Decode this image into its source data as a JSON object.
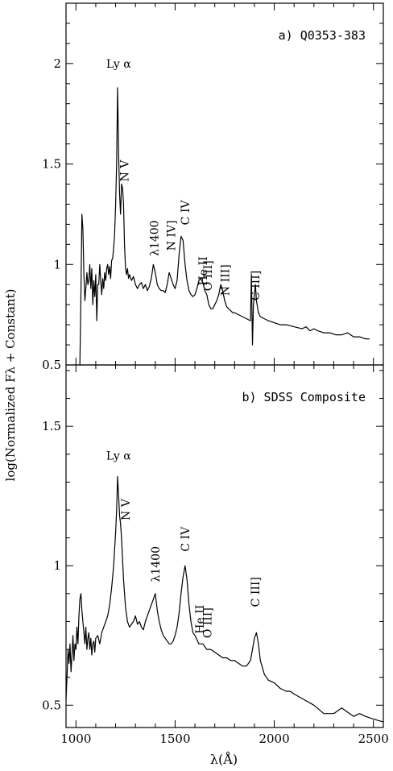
{
  "chart_data": {
    "type": "line",
    "shared_x": {
      "xlabel": "λ(Å)",
      "xlim": [
        950,
        2550
      ],
      "ticks": [
        1000,
        1500,
        2000,
        2500
      ],
      "tick_labels": [
        "1000",
        "1500",
        "2000",
        "2500"
      ]
    },
    "ylabel": "log(Normalized Fλ + Constant)",
    "panels": [
      {
        "title": "a) Q0353-383",
        "ylim": [
          0.5,
          2.3
        ],
        "yticks": [
          0.5,
          1,
          1.5,
          2
        ],
        "ytick_labels": [
          "0.5",
          "1",
          "1.5",
          "2"
        ],
        "annotations": [
          {
            "text": "Ly α",
            "x": 1215,
            "y": 1.98,
            "rotate": false
          },
          {
            "text": "N V",
            "x": 1245,
            "y": 1.52,
            "rotate": true
          },
          {
            "text": "λ1400",
            "x": 1395,
            "y": 1.22,
            "rotate": true
          },
          {
            "text": "N IV]",
            "x": 1480,
            "y": 1.22,
            "rotate": true
          },
          {
            "text": "C IV",
            "x": 1550,
            "y": 1.32,
            "rotate": true
          },
          {
            "text": "He II",
            "x": 1640,
            "y": 1.04,
            "rotate": true
          },
          {
            "text": "O III]",
            "x": 1665,
            "y": 1.02,
            "rotate": true
          },
          {
            "text": "N III]",
            "x": 1752,
            "y": 1.0,
            "rotate": true
          },
          {
            "text": "C III]",
            "x": 1905,
            "y": 0.97,
            "rotate": true
          }
        ],
        "x": [
          1020,
          1025,
          1030,
          1035,
          1040,
          1045,
          1050,
          1055,
          1060,
          1065,
          1070,
          1075,
          1080,
          1085,
          1090,
          1095,
          1100,
          1105,
          1110,
          1115,
          1120,
          1125,
          1130,
          1135,
          1140,
          1145,
          1150,
          1155,
          1160,
          1165,
          1170,
          1175,
          1180,
          1185,
          1190,
          1195,
          1200,
          1205,
          1210,
          1215,
          1220,
          1225,
          1230,
          1235,
          1240,
          1245,
          1250,
          1255,
          1260,
          1265,
          1270,
          1280,
          1290,
          1300,
          1310,
          1320,
          1330,
          1340,
          1350,
          1360,
          1370,
          1380,
          1390,
          1400,
          1410,
          1420,
          1430,
          1440,
          1450,
          1460,
          1470,
          1480,
          1490,
          1500,
          1510,
          1520,
          1530,
          1540,
          1550,
          1560,
          1570,
          1580,
          1590,
          1600,
          1610,
          1620,
          1630,
          1640,
          1650,
          1660,
          1670,
          1680,
          1690,
          1700,
          1710,
          1720,
          1730,
          1740,
          1750,
          1760,
          1770,
          1780,
          1790,
          1800,
          1820,
          1840,
          1860,
          1880,
          1885,
          1890,
          1895,
          1900,
          1905,
          1910,
          1920,
          1930,
          1950,
          1970,
          2000,
          2030,
          2060,
          2100,
          2140,
          2160,
          2180,
          2200,
          2220,
          2250,
          2280,
          2310,
          2340,
          2370,
          2400,
          2430,
          2460,
          2480
        ],
        "y": [
          0.5,
          0.85,
          1.25,
          1.18,
          0.95,
          0.82,
          0.88,
          0.96,
          0.9,
          0.92,
          1.0,
          0.88,
          0.98,
          0.8,
          0.92,
          0.84,
          0.95,
          0.72,
          0.9,
          0.9,
          1.0,
          0.92,
          0.85,
          0.93,
          0.88,
          0.96,
          0.92,
          0.98,
          1.0,
          0.95,
          0.99,
          0.93,
          1.02,
          1.03,
          1.08,
          1.15,
          1.3,
          1.5,
          1.88,
          1.55,
          1.35,
          1.25,
          1.4,
          1.38,
          1.3,
          1.1,
          0.98,
          0.95,
          0.98,
          0.93,
          0.95,
          0.92,
          0.94,
          0.9,
          0.88,
          0.9,
          0.91,
          0.88,
          0.9,
          0.87,
          0.89,
          0.93,
          1.0,
          0.96,
          0.9,
          0.88,
          0.87,
          0.87,
          0.86,
          0.9,
          0.96,
          0.93,
          0.9,
          0.88,
          0.92,
          1.05,
          1.14,
          1.12,
          1.0,
          0.92,
          0.87,
          0.85,
          0.84,
          0.85,
          0.88,
          0.92,
          0.93,
          0.91,
          0.87,
          0.85,
          0.8,
          0.78,
          0.78,
          0.8,
          0.82,
          0.85,
          0.9,
          0.87,
          0.82,
          0.79,
          0.78,
          0.77,
          0.76,
          0.76,
          0.75,
          0.74,
          0.73,
          0.72,
          0.95,
          0.6,
          0.8,
          0.85,
          0.9,
          0.82,
          0.76,
          0.74,
          0.73,
          0.72,
          0.71,
          0.7,
          0.7,
          0.69,
          0.68,
          0.69,
          0.67,
          0.68,
          0.67,
          0.66,
          0.66,
          0.65,
          0.65,
          0.66,
          0.64,
          0.64,
          0.63,
          0.63
        ]
      },
      {
        "title": "b) SDSS Composite",
        "ylim": [
          0.42,
          1.72
        ],
        "yticks": [
          0.5,
          1,
          1.5
        ],
        "ytick_labels": [
          "0.5",
          "1",
          "1.5"
        ],
        "annotations": [
          {
            "text": "Ly α",
            "x": 1215,
            "y": 1.38,
            "rotate": false
          },
          {
            "text": "N V",
            "x": 1250,
            "y": 1.24,
            "rotate": true
          },
          {
            "text": "λ1400",
            "x": 1400,
            "y": 1.07,
            "rotate": true
          },
          {
            "text": "C IV",
            "x": 1550,
            "y": 1.14,
            "rotate": true
          },
          {
            "text": "He II",
            "x": 1625,
            "y": 0.86,
            "rotate": true
          },
          {
            "text": "O III]",
            "x": 1662,
            "y": 0.85,
            "rotate": true
          },
          {
            "text": "C III]",
            "x": 1905,
            "y": 0.96,
            "rotate": true
          }
        ],
        "x": [
          950,
          955,
          960,
          965,
          970,
          975,
          980,
          985,
          990,
          995,
          1000,
          1005,
          1010,
          1015,
          1020,
          1025,
          1030,
          1035,
          1040,
          1045,
          1050,
          1055,
          1060,
          1065,
          1070,
          1075,
          1080,
          1085,
          1090,
          1095,
          1100,
          1110,
          1120,
          1130,
          1140,
          1150,
          1160,
          1170,
          1180,
          1190,
          1200,
          1205,
          1210,
          1215,
          1220,
          1225,
          1230,
          1240,
          1250,
          1260,
          1270,
          1280,
          1290,
          1300,
          1310,
          1320,
          1330,
          1340,
          1350,
          1360,
          1370,
          1380,
          1390,
          1400,
          1410,
          1420,
          1430,
          1440,
          1450,
          1460,
          1470,
          1480,
          1490,
          1500,
          1510,
          1520,
          1530,
          1540,
          1550,
          1560,
          1570,
          1580,
          1590,
          1600,
          1620,
          1640,
          1660,
          1680,
          1700,
          1720,
          1740,
          1760,
          1780,
          1800,
          1820,
          1840,
          1860,
          1880,
          1890,
          1900,
          1910,
          1920,
          1930,
          1950,
          1970,
          2000,
          2030,
          2060,
          2080,
          2100,
          2150,
          2200,
          2250,
          2300,
          2320,
          2340,
          2380,
          2400,
          2430,
          2460,
          2500,
          2550
        ],
        "y": [
          0.52,
          0.6,
          0.7,
          0.65,
          0.72,
          0.62,
          0.68,
          0.75,
          0.66,
          0.72,
          0.7,
          0.78,
          0.72,
          0.82,
          0.88,
          0.9,
          0.84,
          0.8,
          0.76,
          0.72,
          0.78,
          0.7,
          0.74,
          0.76,
          0.7,
          0.74,
          0.68,
          0.72,
          0.73,
          0.69,
          0.74,
          0.75,
          0.72,
          0.76,
          0.78,
          0.8,
          0.82,
          0.86,
          0.92,
          1.0,
          1.12,
          1.2,
          1.32,
          1.25,
          1.18,
          1.15,
          1.1,
          0.95,
          0.85,
          0.8,
          0.78,
          0.79,
          0.8,
          0.82,
          0.79,
          0.8,
          0.78,
          0.77,
          0.8,
          0.82,
          0.84,
          0.86,
          0.88,
          0.9,
          0.84,
          0.8,
          0.77,
          0.75,
          0.74,
          0.73,
          0.72,
          0.72,
          0.73,
          0.75,
          0.78,
          0.83,
          0.9,
          0.96,
          1.0,
          0.95,
          0.86,
          0.8,
          0.76,
          0.75,
          0.72,
          0.72,
          0.7,
          0.7,
          0.69,
          0.68,
          0.67,
          0.67,
          0.66,
          0.66,
          0.65,
          0.64,
          0.64,
          0.66,
          0.7,
          0.74,
          0.76,
          0.72,
          0.66,
          0.61,
          0.59,
          0.58,
          0.56,
          0.55,
          0.55,
          0.54,
          0.52,
          0.5,
          0.47,
          0.47,
          0.48,
          0.49,
          0.47,
          0.46,
          0.47,
          0.46,
          0.45,
          0.44
        ]
      }
    ]
  }
}
